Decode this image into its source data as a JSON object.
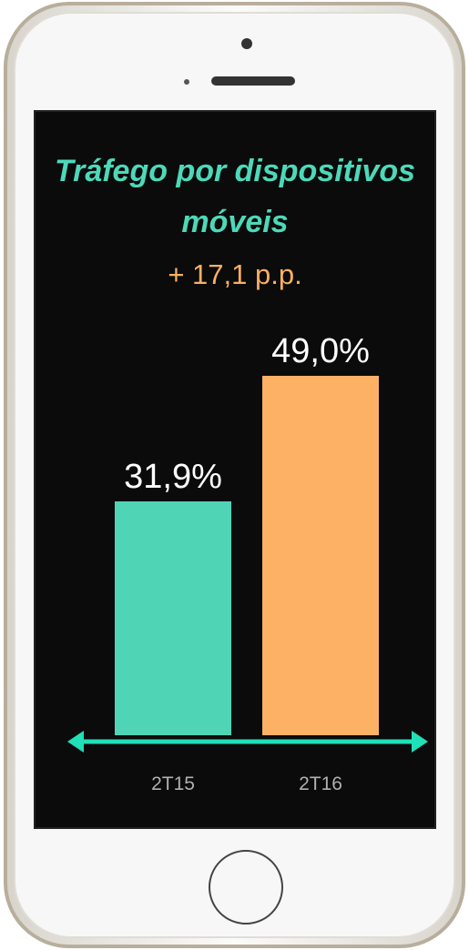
{
  "chart_data": {
    "type": "bar",
    "title": "Tráfego por dispositivos móveis",
    "subtitle": "+ 17,1 p.p.",
    "categories": [
      "2T15",
      "2T16"
    ],
    "values": [
      31.9,
      49.0
    ],
    "value_labels": [
      "31,9%",
      "49,0%"
    ],
    "colors": [
      "#4fd5b6",
      "#fdb164"
    ]
  }
}
